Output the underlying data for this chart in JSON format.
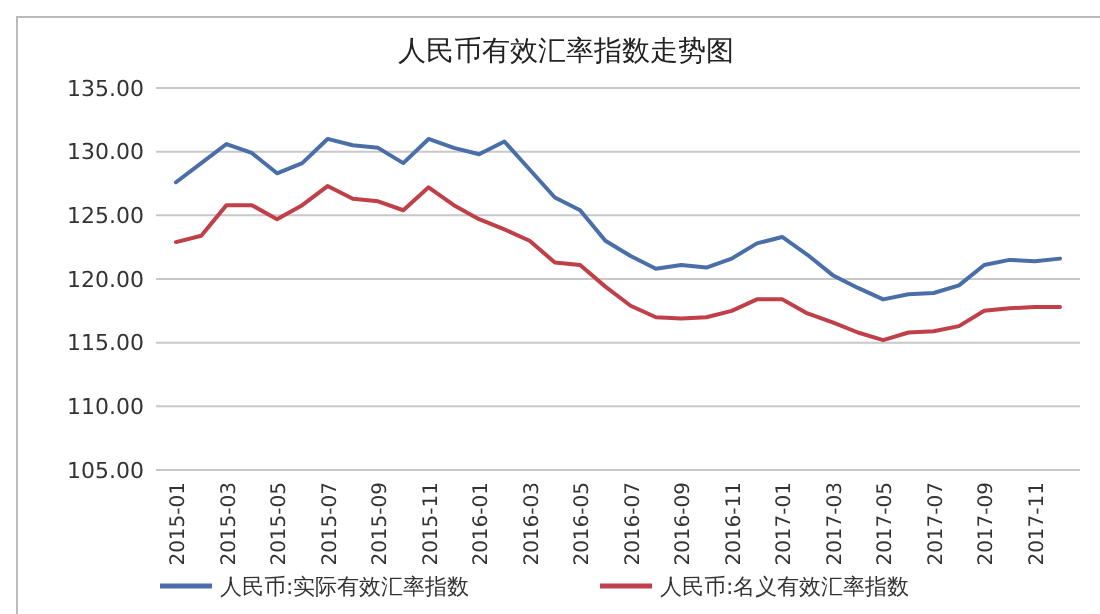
{
  "chart_data": {
    "type": "line",
    "title": "人民币有效汇率指数走势图",
    "categories": [
      "2015-01",
      null,
      "2015-03",
      null,
      "2015-05",
      null,
      "2015-07",
      null,
      "2015-09",
      null,
      "2015-11",
      null,
      "2016-01",
      null,
      "2016-03",
      null,
      "2016-05",
      null,
      "2016-07",
      null,
      "2016-09",
      null,
      "2016-11",
      null,
      "2017-01",
      null,
      "2017-03",
      null,
      "2017-05",
      null,
      "2017-07",
      null,
      "2017-09",
      null,
      "2017-11",
      null
    ],
    "series": [
      {
        "name": "人民币:实际有效汇率指数",
        "color": "#4a6fa8",
        "values": [
          127.6,
          129.1,
          130.6,
          129.9,
          128.3,
          129.1,
          131.0,
          130.5,
          130.3,
          129.1,
          131.0,
          130.3,
          129.8,
          130.8,
          128.6,
          126.4,
          125.4,
          123.0,
          121.8,
          120.8,
          121.1,
          120.9,
          121.6,
          122.8,
          123.3,
          121.9,
          120.3,
          119.3,
          118.4,
          118.8,
          118.9,
          119.5,
          121.1,
          121.5,
          121.4,
          121.6
        ]
      },
      {
        "name": "人民币:名义有效汇率指数",
        "color": "#c0404a",
        "values": [
          122.9,
          123.4,
          125.8,
          125.8,
          124.7,
          125.8,
          127.3,
          126.3,
          126.1,
          125.4,
          127.2,
          125.8,
          124.7,
          123.9,
          123.0,
          121.3,
          121.1,
          119.4,
          117.9,
          117.0,
          116.9,
          117.0,
          117.5,
          118.4,
          118.4,
          117.3,
          116.6,
          115.8,
          115.2,
          115.8,
          115.9,
          116.3,
          117.5,
          117.7,
          117.8,
          117.8
        ]
      }
    ],
    "ylim": [
      105,
      135
    ],
    "yticks": [
      {
        "value": 105,
        "label": "105.00"
      },
      {
        "value": 110,
        "label": "110.00"
      },
      {
        "value": 115,
        "label": "115.00"
      },
      {
        "value": 120,
        "label": "120.00"
      },
      {
        "value": 125,
        "label": "125.00"
      },
      {
        "value": 130,
        "label": "130.00"
      },
      {
        "value": 135,
        "label": "135.00"
      }
    ],
    "grid": "y",
    "legend": "bottom",
    "marker": "none",
    "line_style": "solid"
  }
}
